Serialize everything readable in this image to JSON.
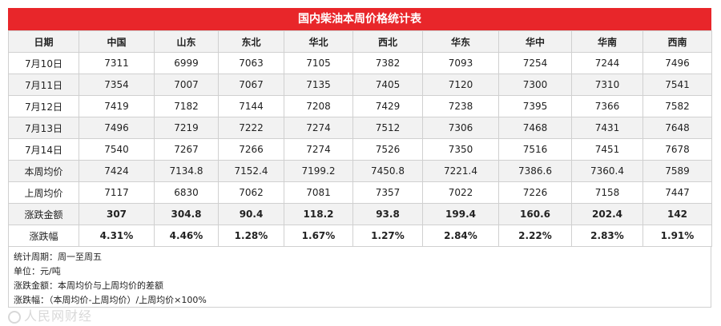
{
  "title": "国内柴油本周价格统计表",
  "headers": [
    "日期",
    "中国",
    "山东",
    "东北",
    "华北",
    "西北",
    "华东",
    "华中",
    "华南",
    "西南"
  ],
  "rows": [
    {
      "label": "7月10日",
      "values": [
        "7311",
        "6999",
        "7063",
        "7105",
        "7382",
        "7093",
        "7254",
        "7244",
        "7496"
      ],
      "kind": "data"
    },
    {
      "label": "7月11日",
      "values": [
        "7354",
        "7007",
        "7067",
        "7135",
        "7405",
        "7120",
        "7300",
        "7310",
        "7541"
      ],
      "kind": "data"
    },
    {
      "label": "7月12日",
      "values": [
        "7419",
        "7182",
        "7144",
        "7208",
        "7429",
        "7238",
        "7395",
        "7366",
        "7582"
      ],
      "kind": "data"
    },
    {
      "label": "7月13日",
      "values": [
        "7496",
        "7219",
        "7222",
        "7274",
        "7512",
        "7306",
        "7468",
        "7431",
        "7648"
      ],
      "kind": "data"
    },
    {
      "label": "7月14日",
      "values": [
        "7540",
        "7267",
        "7266",
        "7274",
        "7526",
        "7350",
        "7516",
        "7451",
        "7678"
      ],
      "kind": "data"
    },
    {
      "label": "本周均价",
      "values": [
        "7424",
        "7134.8",
        "7152.4",
        "7199.2",
        "7450.8",
        "7221.4",
        "7386.6",
        "7360.4",
        "7589"
      ],
      "kind": "data"
    },
    {
      "label": "上周均价",
      "values": [
        "7117",
        "6830",
        "7062",
        "7081",
        "7357",
        "7022",
        "7226",
        "7158",
        "7447"
      ],
      "kind": "data"
    },
    {
      "label": "涨跌金额",
      "values": [
        "307",
        "304.8",
        "90.4",
        "118.2",
        "93.8",
        "199.4",
        "160.6",
        "202.4",
        "142"
      ],
      "kind": "change"
    },
    {
      "label": "涨跌幅",
      "values": [
        "4.31%",
        "4.46%",
        "1.28%",
        "1.67%",
        "1.27%",
        "2.84%",
        "2.22%",
        "2.83%",
        "1.91%"
      ],
      "kind": "change"
    }
  ],
  "notes": [
    "统计周期：周一至周五",
    "单位：元/吨",
    "涨跌金额：本周均价与上周均价的差额",
    "涨跌幅：（本周均价-上周均价）/上周均价×100%"
  ],
  "watermark": "人民网财经",
  "colors": {
    "accent": "#e8262a",
    "stripe": "#f2f2f2"
  }
}
